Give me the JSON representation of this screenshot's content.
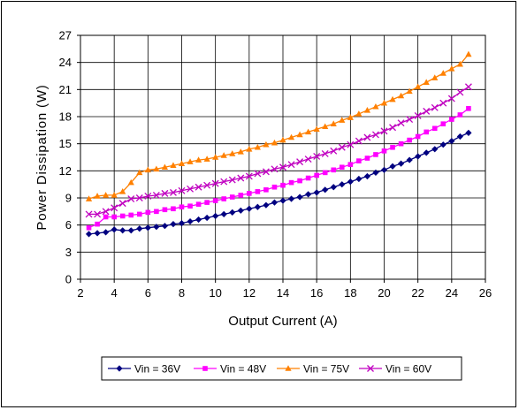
{
  "chart_data": {
    "type": "line",
    "title": "",
    "xlabel": "Output Current (A)",
    "ylabel": "Power Dissipation (W)",
    "xlim": [
      2,
      26
    ],
    "ylim": [
      0,
      27
    ],
    "xticks": [
      2,
      4,
      6,
      8,
      10,
      12,
      14,
      16,
      18,
      20,
      22,
      24,
      26
    ],
    "yticks": [
      0,
      3,
      6,
      9,
      12,
      15,
      18,
      21,
      24,
      27
    ],
    "grid": true,
    "legend_position": "bottom",
    "series": [
      {
        "name": "Vin = 36V",
        "color": "#000080",
        "marker": "diamond",
        "x": [
          2.5,
          3.0,
          3.5,
          4.0,
          4.5,
          5.0,
          5.5,
          6.0,
          6.5,
          7.0,
          7.5,
          8.0,
          8.5,
          9.0,
          9.5,
          10.0,
          10.5,
          11.0,
          11.5,
          12.0,
          12.5,
          13.0,
          13.5,
          14.0,
          14.5,
          15.0,
          15.5,
          16.0,
          16.5,
          17.0,
          17.5,
          18.0,
          18.5,
          19.0,
          19.5,
          20.0,
          20.5,
          21.0,
          21.5,
          22.0,
          22.5,
          23.0,
          23.5,
          24.0,
          24.5,
          25.0
        ],
        "y": [
          5.0,
          5.1,
          5.2,
          5.5,
          5.4,
          5.4,
          5.6,
          5.7,
          5.8,
          5.9,
          6.1,
          6.2,
          6.4,
          6.6,
          6.8,
          7.0,
          7.2,
          7.4,
          7.6,
          7.8,
          8.0,
          8.2,
          8.5,
          8.7,
          8.9,
          9.1,
          9.4,
          9.6,
          9.9,
          10.2,
          10.5,
          10.8,
          11.1,
          11.4,
          11.8,
          12.1,
          12.5,
          12.8,
          13.2,
          13.6,
          14.0,
          14.4,
          14.9,
          15.3,
          15.8,
          16.2
        ]
      },
      {
        "name": "Vin = 48V",
        "color": "#ff00ff",
        "marker": "square",
        "x": [
          2.5,
          3.0,
          3.5,
          4.0,
          4.5,
          5.0,
          5.5,
          6.0,
          6.5,
          7.0,
          7.5,
          8.0,
          8.5,
          9.0,
          9.5,
          10.0,
          10.5,
          11.0,
          11.5,
          12.0,
          12.5,
          13.0,
          13.5,
          14.0,
          14.5,
          15.0,
          15.5,
          16.0,
          16.5,
          17.0,
          17.5,
          18.0,
          18.5,
          19.0,
          19.5,
          20.0,
          20.5,
          21.0,
          21.5,
          22.0,
          22.5,
          23.0,
          23.5,
          24.0,
          24.5,
          25.0
        ],
        "y": [
          5.7,
          6.1,
          6.9,
          6.9,
          7.0,
          7.1,
          7.2,
          7.4,
          7.5,
          7.7,
          7.8,
          8.0,
          8.1,
          8.3,
          8.5,
          8.7,
          8.9,
          9.1,
          9.3,
          9.5,
          9.7,
          9.9,
          10.2,
          10.4,
          10.7,
          10.9,
          11.2,
          11.5,
          11.8,
          12.1,
          12.4,
          12.7,
          13.1,
          13.4,
          13.8,
          14.2,
          14.6,
          15.0,
          15.4,
          15.8,
          16.3,
          16.7,
          17.2,
          17.7,
          18.2,
          18.9
        ]
      },
      {
        "name": "Vin = 75V",
        "color": "#ff8000",
        "marker": "triangle",
        "x": [
          2.5,
          3.0,
          3.5,
          4.0,
          4.5,
          5.0,
          5.5,
          6.0,
          6.5,
          7.0,
          7.5,
          8.0,
          8.5,
          9.0,
          9.5,
          10.0,
          10.5,
          11.0,
          11.5,
          12.0,
          12.5,
          13.0,
          13.5,
          14.0,
          14.5,
          15.0,
          15.5,
          16.0,
          16.5,
          17.0,
          17.5,
          18.0,
          18.5,
          19.0,
          19.5,
          20.0,
          20.5,
          21.0,
          21.5,
          22.0,
          22.5,
          23.0,
          23.5,
          24.0,
          24.5,
          25.0
        ],
        "y": [
          8.9,
          9.2,
          9.3,
          9.3,
          9.7,
          10.7,
          11.8,
          12.1,
          12.2,
          12.4,
          12.6,
          12.8,
          13.0,
          13.2,
          13.3,
          13.5,
          13.7,
          13.9,
          14.1,
          14.4,
          14.6,
          14.9,
          15.1,
          15.4,
          15.7,
          16.0,
          16.3,
          16.6,
          16.9,
          17.2,
          17.6,
          17.9,
          18.3,
          18.7,
          19.1,
          19.5,
          19.9,
          20.3,
          20.8,
          21.3,
          21.8,
          22.3,
          22.8,
          23.3,
          23.8,
          24.9
        ]
      },
      {
        "name": "Vin = 60V",
        "color": "#c000c0",
        "marker": "x",
        "x": [
          2.5,
          3.0,
          3.5,
          4.0,
          4.5,
          5.0,
          5.5,
          6.0,
          6.5,
          7.0,
          7.5,
          8.0,
          8.5,
          9.0,
          9.5,
          10.0,
          10.5,
          11.0,
          11.5,
          12.0,
          12.5,
          13.0,
          13.5,
          14.0,
          14.5,
          15.0,
          15.5,
          16.0,
          16.5,
          17.0,
          17.5,
          18.0,
          18.5,
          19.0,
          19.5,
          20.0,
          20.5,
          21.0,
          21.5,
          22.0,
          22.5,
          23.0,
          23.5,
          24.0,
          24.5,
          25.0
        ],
        "y": [
          7.2,
          7.2,
          7.5,
          7.9,
          8.4,
          8.9,
          9.0,
          9.2,
          9.3,
          9.5,
          9.6,
          9.8,
          10.0,
          10.2,
          10.4,
          10.6,
          10.8,
          11.0,
          11.2,
          11.4,
          11.7,
          11.9,
          12.2,
          12.4,
          12.7,
          13.0,
          13.3,
          13.6,
          13.9,
          14.2,
          14.6,
          14.9,
          15.3,
          15.7,
          16.0,
          16.4,
          16.8,
          17.3,
          17.7,
          18.1,
          18.6,
          19.0,
          19.5,
          20.0,
          20.7,
          21.3
        ]
      }
    ]
  }
}
